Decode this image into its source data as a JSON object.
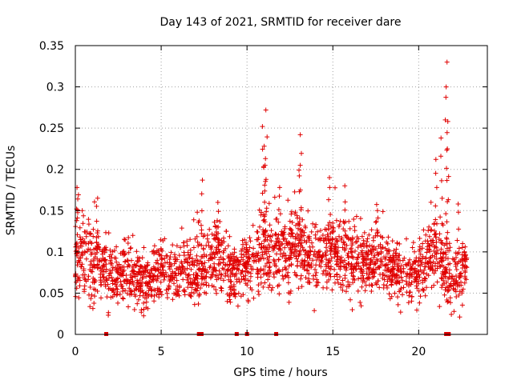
{
  "chart_data": {
    "type": "scatter",
    "title": "Day 143 of 2021, SRMTID for receiver dare",
    "xlabel": "GPS time / hours",
    "ylabel": "SRMTID / TECUs",
    "xlim": [
      0,
      24
    ],
    "ylim": [
      0,
      0.35
    ],
    "xticks": [
      0,
      5,
      10,
      15,
      20
    ],
    "xtick_labels": [
      "0",
      "5",
      "10",
      "15",
      "20"
    ],
    "yticks": [
      0,
      0.05,
      0.1,
      0.15,
      0.2,
      0.25,
      0.3,
      0.35
    ],
    "ytick_labels": [
      "0",
      "0.05",
      "0.1",
      "0.15",
      "0.2",
      "0.25",
      "0.3",
      "0.35"
    ],
    "grid": true,
    "marker": "+",
    "color": "#e00000",
    "data_span_hours": [
      0,
      22.8
    ],
    "baseline_envelope": [
      {
        "x": 0.0,
        "y": 0.09,
        "spread": 0.035
      },
      {
        "x": 1.0,
        "y": 0.09,
        "spread": 0.03
      },
      {
        "x": 2.0,
        "y": 0.075,
        "spread": 0.025
      },
      {
        "x": 3.0,
        "y": 0.068,
        "spread": 0.022
      },
      {
        "x": 4.0,
        "y": 0.063,
        "spread": 0.02
      },
      {
        "x": 5.0,
        "y": 0.075,
        "spread": 0.022
      },
      {
        "x": 6.0,
        "y": 0.08,
        "spread": 0.025
      },
      {
        "x": 7.0,
        "y": 0.07,
        "spread": 0.025
      },
      {
        "x": 8.0,
        "y": 0.095,
        "spread": 0.03
      },
      {
        "x": 9.0,
        "y": 0.07,
        "spread": 0.022
      },
      {
        "x": 10.0,
        "y": 0.075,
        "spread": 0.025
      },
      {
        "x": 11.0,
        "y": 0.1,
        "spread": 0.03
      },
      {
        "x": 12.0,
        "y": 0.095,
        "spread": 0.03
      },
      {
        "x": 13.0,
        "y": 0.105,
        "spread": 0.03
      },
      {
        "x": 14.0,
        "y": 0.09,
        "spread": 0.028
      },
      {
        "x": 15.0,
        "y": 0.1,
        "spread": 0.03
      },
      {
        "x": 16.0,
        "y": 0.09,
        "spread": 0.028
      },
      {
        "x": 17.0,
        "y": 0.09,
        "spread": 0.028
      },
      {
        "x": 18.0,
        "y": 0.085,
        "spread": 0.025
      },
      {
        "x": 19.0,
        "y": 0.07,
        "spread": 0.022
      },
      {
        "x": 20.0,
        "y": 0.075,
        "spread": 0.025
      },
      {
        "x": 21.0,
        "y": 0.1,
        "spread": 0.03
      },
      {
        "x": 22.0,
        "y": 0.06,
        "spread": 0.025
      },
      {
        "x": 22.8,
        "y": 0.085,
        "spread": 0.02
      }
    ],
    "peaks": [
      {
        "x": 0.1,
        "y": 0.178
      },
      {
        "x": 0.4,
        "y": 0.15
      },
      {
        "x": 1.3,
        "y": 0.165
      },
      {
        "x": 7.4,
        "y": 0.187
      },
      {
        "x": 7.1,
        "y": 0.148
      },
      {
        "x": 8.3,
        "y": 0.16
      },
      {
        "x": 10.9,
        "y": 0.252
      },
      {
        "x": 11.1,
        "y": 0.272
      },
      {
        "x": 11.0,
        "y": 0.228
      },
      {
        "x": 11.05,
        "y": 0.205
      },
      {
        "x": 11.9,
        "y": 0.178
      },
      {
        "x": 13.1,
        "y": 0.242
      },
      {
        "x": 13.1,
        "y": 0.205
      },
      {
        "x": 14.8,
        "y": 0.19
      },
      {
        "x": 15.7,
        "y": 0.18
      },
      {
        "x": 17.6,
        "y": 0.15
      },
      {
        "x": 21.0,
        "y": 0.212
      },
      {
        "x": 21.3,
        "y": 0.238
      },
      {
        "x": 21.6,
        "y": 0.3
      },
      {
        "x": 21.65,
        "y": 0.33
      },
      {
        "x": 21.7,
        "y": 0.258
      },
      {
        "x": 22.3,
        "y": 0.158
      }
    ],
    "data_gaps_at_hours": [
      1.8,
      7.2,
      7.35,
      9.4,
      10.0,
      11.7,
      21.6,
      21.75
    ]
  }
}
